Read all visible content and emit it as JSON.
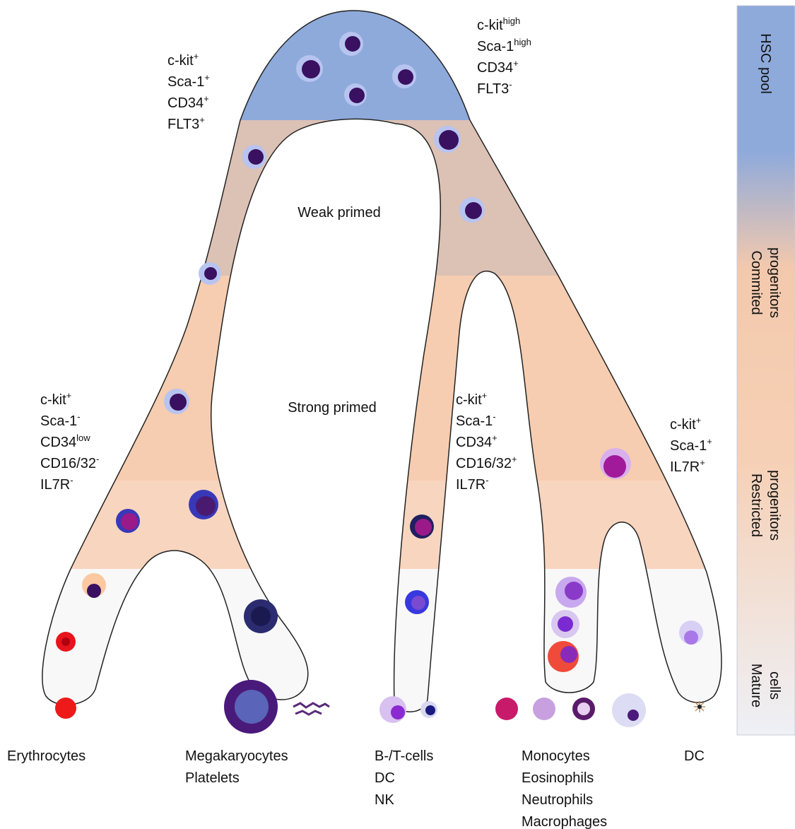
{
  "stages": [
    [
      "HSC pool"
    ],
    [
      "Commited",
      "progenitors"
    ],
    [
      "Restricted",
      "progenitors"
    ],
    [
      "Mature",
      "cells"
    ]
  ],
  "regions": [
    "Weak primed",
    "Strong primed"
  ],
  "markers": [
    [
      {
        "text": "c-kit",
        "sup": "+"
      },
      {
        "text": "Sca-1",
        "sup": "+"
      },
      {
        "text": "CD34",
        "sup": "+"
      },
      {
        "text": "FLT3",
        "sup": "+"
      }
    ],
    [
      {
        "text": "c-kit",
        "sup": "high"
      },
      {
        "text": "Sca-1",
        "sup": "high"
      },
      {
        "text": "CD34",
        "sup": "+"
      },
      {
        "text": "FLT3",
        "sup": "-"
      }
    ],
    [
      {
        "text": "c-kit",
        "sup": "+"
      },
      {
        "text": "Sca-1",
        "sup": "-"
      },
      {
        "text": "CD34",
        "sup": "low"
      },
      {
        "text": "CD16/32",
        "sup": "-"
      },
      {
        "text": "IL7R",
        "sup": "-"
      }
    ],
    [
      {
        "text": "c-kit",
        "sup": "+"
      },
      {
        "text": "Sca-1",
        "sup": "-"
      },
      {
        "text": "CD34",
        "sup": "+"
      },
      {
        "text": "CD16/32",
        "sup": "+"
      },
      {
        "text": "IL7R",
        "sup": "-"
      }
    ],
    [
      {
        "text": "c-kit",
        "sup": "+"
      },
      {
        "text": "Sca-1",
        "sup": "+"
      },
      {
        "text": "IL7R",
        "sup": "+"
      }
    ]
  ],
  "outputs": [
    [
      "Erythrocytes"
    ],
    [
      "Megakaryocytes",
      "Platelets"
    ],
    [
      "B-/T-cells",
      "DC",
      "NK"
    ],
    [
      "Monocytes",
      "Eosinophils",
      "Neutrophils",
      "Macrophages"
    ],
    [
      "DC"
    ]
  ]
}
